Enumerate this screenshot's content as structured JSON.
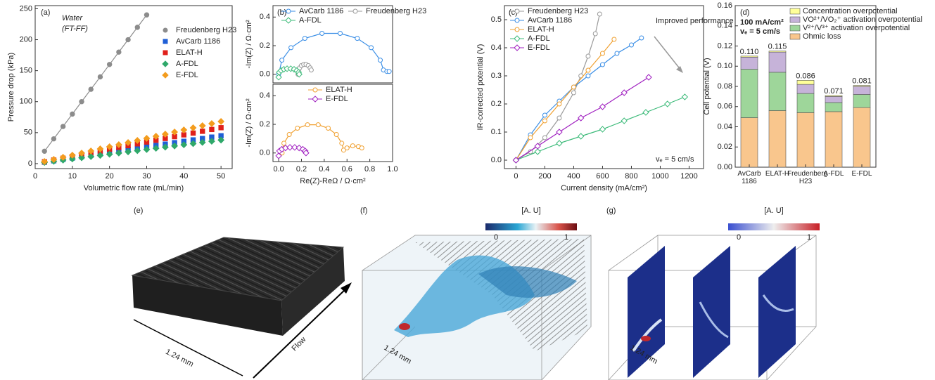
{
  "chart_data": [
    {
      "type": "scatter",
      "xlabel": "Volumetric flow rate (mL/min)",
      "ylabel": "Pressure drop (kPa)",
      "annotations": [
        "(a)",
        "Water",
        "(FT-FF)"
      ],
      "x": [
        2.5,
        5,
        7.5,
        10,
        12.5,
        15,
        17.5,
        20,
        22.5,
        25,
        27.5,
        30,
        32.5,
        35,
        37.5,
        40,
        42.5,
        45,
        47.5,
        50
      ],
      "series": [
        {
          "name": "Freudenberg H23",
          "color": "#8c8c8c",
          "marker": "circle",
          "line": true,
          "values": [
            20,
            40,
            60,
            80,
            100,
            120,
            140,
            160,
            180,
            200,
            220,
            240,
            null,
            null,
            null,
            null,
            null,
            null,
            null,
            null
          ]
        },
        {
          "name": "AvCarb 1186",
          "color": "#1f5fd6",
          "marker": "square",
          "values": [
            2.3,
            4.5,
            6.8,
            9,
            11.3,
            13.5,
            15.8,
            18,
            20.3,
            22.5,
            24.8,
            27,
            29.3,
            31.5,
            33.8,
            36,
            38.3,
            40.5,
            42.8,
            45
          ]
        },
        {
          "name": "ELAT-H",
          "color": "#e0201b",
          "marker": "square",
          "values": [
            2.9,
            5.8,
            8.7,
            11.6,
            14.5,
            17.4,
            20.3,
            23.2,
            26.1,
            29,
            31.9,
            34.8,
            37.7,
            40.6,
            43.5,
            46.4,
            49.3,
            52.2,
            55.1,
            58
          ]
        },
        {
          "name": "A-FDL",
          "color": "#2fa86a",
          "marker": "diamond",
          "values": [
            1.9,
            3.8,
            5.7,
            7.6,
            9.5,
            11.4,
            13.3,
            15.2,
            17.1,
            19,
            20.9,
            22.8,
            24.7,
            26.6,
            28.5,
            30.4,
            32.3,
            34.2,
            36.1,
            38
          ]
        },
        {
          "name": "E-FDL",
          "color": "#f39c1e",
          "marker": "diamond",
          "values": [
            3.4,
            6.8,
            10.2,
            13.6,
            17,
            20.4,
            23.8,
            27.2,
            30.6,
            34,
            37.4,
            40.8,
            44.2,
            47.6,
            51,
            54.4,
            57.8,
            61.2,
            64.6,
            68
          ]
        }
      ],
      "xlim": [
        0,
        53
      ],
      "xticks": [
        0,
        10,
        20,
        30,
        40,
        50
      ],
      "ylim": [
        -8,
        255
      ],
      "yticks": [
        0,
        50,
        100,
        150,
        200,
        250
      ],
      "legend": "center right"
    },
    {
      "type": "line",
      "ylabel": "-Im(Z) / Ω·cm²",
      "annotations": [
        "(b)"
      ],
      "series": [
        {
          "name": "AvCarb 1186",
          "color": "#3a8ee6",
          "marker": "circle",
          "x": [
            0,
            0.028,
            0.108,
            0.23,
            0.38,
            0.54,
            0.69,
            0.812,
            0.892,
            0.92,
            0.95,
            0.97
          ],
          "values": [
            0,
            0.099,
            0.186,
            0.251,
            0.286,
            0.286,
            0.251,
            0.186,
            0.099,
            0.03,
            0.02,
            0.02
          ]
        },
        {
          "name": "Freudenberg H23",
          "color": "#999999",
          "marker": "circle",
          "x": [
            0.17,
            0.174,
            0.184,
            0.2,
            0.22,
            0.24,
            0.26,
            0.276,
            0.286
          ],
          "values": [
            0,
            0.024,
            0.045,
            0.061,
            0.069,
            0.069,
            0.061,
            0.045,
            0.03
          ]
        },
        {
          "name": "A-FDL",
          "color": "#3dbb7a",
          "marker": "diamond",
          "x": [
            0,
            0.005,
            0.021,
            0.045,
            0.074,
            0.106,
            0.135,
            0.159,
            0.175,
            0.18
          ],
          "values": [
            -0.02,
            0.014,
            0.026,
            0.035,
            0.039,
            0.039,
            0.035,
            0.026,
            0.014,
            0
          ]
        }
      ],
      "xlim": [
        -0.05,
        1.0
      ],
      "ylim": [
        -0.06,
        0.48
      ],
      "yticks": [
        {
          "value": 0,
          "label": "0.0"
        },
        0.2,
        0.4
      ],
      "legend": "upper center"
    },
    {
      "type": "line",
      "ylabel": "-Im(Z) / Ω·cm²",
      "xlabel": "Re(Z)-ReΩ / Ω·cm²",
      "series": [
        {
          "name": "ELAT-H",
          "color": "#f0a030",
          "marker": "circle",
          "x": [
            0.03,
            0.046,
            0.093,
            0.165,
            0.253,
            0.347,
            0.435,
            0.507,
            0.554,
            0.57,
            0.6,
            0.65,
            0.7,
            0.73
          ],
          "values": [
            0,
            0.068,
            0.129,
            0.173,
            0.197,
            0.197,
            0.173,
            0.129,
            0.068,
            0.02,
            0.035,
            0.05,
            0.045,
            0.035
          ]
        },
        {
          "name": "E-FDL",
          "color": "#a020c0",
          "marker": "diamond",
          "x": [
            0,
            0.007,
            0.028,
            0.06,
            0.099,
            0.141,
            0.18,
            0.212,
            0.233,
            0.24
          ],
          "values": [
            -0.02,
            0.014,
            0.026,
            0.035,
            0.039,
            0.039,
            0.035,
            0.026,
            0.014,
            0
          ]
        }
      ],
      "xlim": [
        -0.05,
        1.0
      ],
      "xticks": [
        {
          "value": 0,
          "label": "0.0"
        },
        0.2,
        0.4,
        0.6,
        0.8,
        {
          "value": 1,
          "label": "1.0"
        }
      ],
      "ylim": [
        -0.06,
        0.48
      ],
      "yticks": [
        {
          "value": 0,
          "label": "0.0"
        },
        0.2,
        0.4
      ],
      "legend": "upper right"
    },
    {
      "type": "line",
      "xlabel": "Current density (mA/cm²)",
      "ylabel": "IR-corrected potential (V)",
      "annotations": [
        "(c)",
        "Improved performance",
        "vₑ = 5 cm/s"
      ],
      "series": [
        {
          "name": "Freudenberg H23",
          "color": "#999999",
          "marker": "circle",
          "x": [
            0,
            100,
            200,
            300,
            400,
            450,
            500,
            550,
            580
          ],
          "values": [
            0,
            0.03,
            0.08,
            0.15,
            0.24,
            0.3,
            0.37,
            0.45,
            0.52
          ]
        },
        {
          "name": "AvCarb 1186",
          "color": "#3a8ee6",
          "marker": "circle",
          "x": [
            0,
            100,
            200,
            300,
            400,
            500,
            600,
            700,
            800,
            870
          ],
          "values": [
            0,
            0.09,
            0.16,
            0.21,
            0.26,
            0.3,
            0.34,
            0.38,
            0.41,
            0.435
          ]
        },
        {
          "name": "ELAT-H",
          "color": "#f0a030",
          "marker": "circle",
          "x": [
            0,
            100,
            200,
            300,
            400,
            500,
            600,
            680
          ],
          "values": [
            0,
            0.08,
            0.14,
            0.2,
            0.26,
            0.32,
            0.38,
            0.43
          ]
        },
        {
          "name": "A-FDL",
          "color": "#3dbb7a",
          "marker": "diamond",
          "x": [
            0,
            150,
            300,
            450,
            600,
            750,
            900,
            1050,
            1170
          ],
          "values": [
            0,
            0.03,
            0.06,
            0.085,
            0.11,
            0.14,
            0.17,
            0.2,
            0.225
          ]
        },
        {
          "name": "E-FDL",
          "color": "#a020c0",
          "marker": "diamond",
          "x": [
            0,
            150,
            300,
            450,
            600,
            750,
            920
          ],
          "values": [
            0,
            0.05,
            0.1,
            0.15,
            0.19,
            0.24,
            0.295
          ]
        }
      ],
      "xlim": [
        -80,
        1300
      ],
      "xticks": [
        0,
        200,
        400,
        600,
        800,
        1000,
        1200
      ],
      "ylim": [
        -0.03,
        0.55
      ],
      "yticks": [
        {
          "value": 0,
          "label": "0.0"
        },
        0.1,
        0.2,
        0.3,
        0.4,
        0.5
      ],
      "legend": "upper left"
    },
    {
      "type": "stacked_bar",
      "ylabel": "Cell potential (V)",
      "annotations": [
        "(d)",
        "100 mA/cm²",
        "vₑ = 5 cm/s"
      ],
      "categories": [
        "AvCarb 1186",
        "ELAT-H",
        "Freudenberg H23",
        "A-FDL",
        "E-FDL"
      ],
      "series": [
        {
          "name": "Ohmic loss",
          "color": "#f9c68d",
          "values": [
            0.049,
            0.056,
            0.054,
            0.055,
            0.059
          ]
        },
        {
          "name": "V²⁺/V³⁺ activation overpotential",
          "color": "#9ed69a",
          "values": [
            0.048,
            0.038,
            0.019,
            0.009,
            0.013
          ]
        },
        {
          "name": "VO²⁺/VO₂⁺ activation overpotential",
          "color": "#c6b3d9",
          "values": [
            0.012,
            0.02,
            0.009,
            0.006,
            0.008
          ]
        },
        {
          "name": "Concentration overpotential",
          "color": "#ffff99",
          "values": [
            0.001,
            0.001,
            0.004,
            0.001,
            0.001
          ]
        }
      ],
      "totals": [
        0.11,
        0.115,
        0.086,
        0.071,
        0.081
      ],
      "total_labels": [
        "0.110",
        "0.115",
        "0.086",
        "0.071",
        "0.081"
      ],
      "ylim": [
        0,
        0.16
      ],
      "yticks": [
        {
          "value": 0,
          "label": "0.00"
        },
        0.02,
        0.04,
        0.06,
        0.08,
        {
          "value": 0.1,
          "label": "0.10"
        },
        0.12,
        0.14,
        0.16
      ],
      "legend": "upper right"
    }
  ],
  "images": [
    {
      "label": "(e)",
      "scale": "1.24 mm",
      "flow": "Flow"
    },
    {
      "label": "(f)",
      "scale": "1.24 mm",
      "colorbar": {
        "title": "[A. U]",
        "ticks": [
          0,
          1
        ]
      }
    },
    {
      "label": "(g)",
      "scale": "1.24 mm",
      "colorbar": {
        "title": "[A. U]",
        "ticks": [
          0,
          1
        ]
      }
    }
  ]
}
